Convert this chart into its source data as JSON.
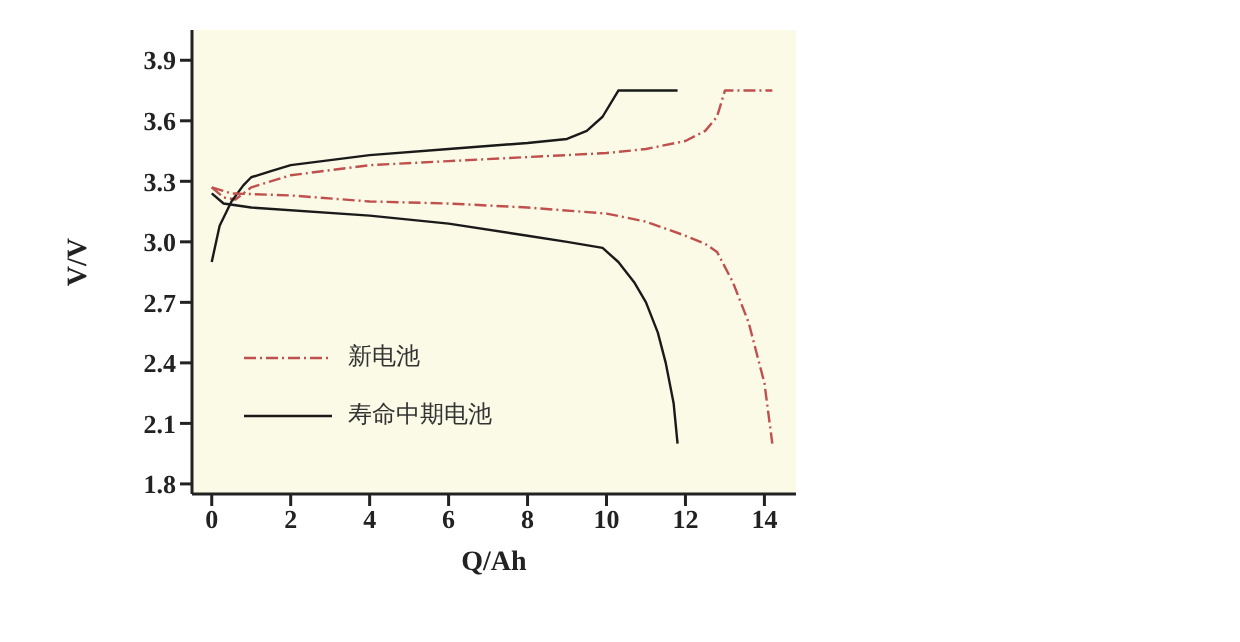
{
  "chart_data": {
    "type": "line",
    "xlabel": "Q/Ah",
    "ylabel": "V/V",
    "xlim": [
      -0.5,
      14.8
    ],
    "ylim": [
      1.75,
      4.05
    ],
    "xticks": [
      0,
      2,
      4,
      6,
      8,
      10,
      12,
      14
    ],
    "yticks": [
      1.8,
      2.1,
      2.4,
      2.7,
      {
        "value": 3,
        "label": "3.0"
      },
      3.3,
      3.6,
      3.9
    ],
    "grid": false,
    "legend": "bottom left",
    "marker": "none",
    "series": [
      {
        "name": "新电池",
        "color": "#c0504d",
        "line_style": "dashed",
        "x": [
          0,
          0.3,
          0.6,
          1,
          2,
          4,
          6,
          8,
          10,
          11,
          12,
          12.5,
          12.8,
          13,
          14.2
        ],
        "values": [
          3.27,
          3.22,
          3.21,
          3.27,
          3.33,
          3.38,
          3.4,
          3.42,
          3.44,
          3.46,
          3.5,
          3.55,
          3.62,
          3.75,
          3.75
        ]
      },
      {
        "name": "寿命中期电池",
        "color": "#1a1a1a",
        "line_style": "solid",
        "x": [
          0,
          0.2,
          0.5,
          0.8,
          1,
          1.5,
          2,
          4,
          6,
          8,
          9,
          9.5,
          9.9,
          10.3,
          11.8
        ],
        "values": [
          2.9,
          3.08,
          3.2,
          3.28,
          3.32,
          3.35,
          3.38,
          3.43,
          3.46,
          3.49,
          3.51,
          3.55,
          3.62,
          3.75,
          3.75
        ]
      },
      {
        "color": "#c0504d",
        "line_style": "dashed",
        "x": [
          0,
          0.5,
          2,
          4,
          6,
          8,
          10,
          11,
          12,
          12.5,
          12.8,
          13.2,
          13.6,
          14,
          14.2
        ],
        "values": [
          3.27,
          3.24,
          3.23,
          3.2,
          3.19,
          3.17,
          3.14,
          3.1,
          3.03,
          2.99,
          2.95,
          2.8,
          2.6,
          2.3,
          2.0
        ]
      },
      {
        "color": "#1a1a1a",
        "line_style": "solid",
        "x": [
          0,
          0.3,
          1,
          4,
          6,
          8,
          9,
          9.9,
          10.3,
          10.7,
          11,
          11.3,
          11.5,
          11.7,
          11.8
        ],
        "values": [
          3.24,
          3.19,
          3.17,
          3.13,
          3.09,
          3.03,
          3.0,
          2.97,
          2.9,
          2.8,
          2.7,
          2.55,
          2.4,
          2.2,
          2.0
        ]
      }
    ]
  }
}
